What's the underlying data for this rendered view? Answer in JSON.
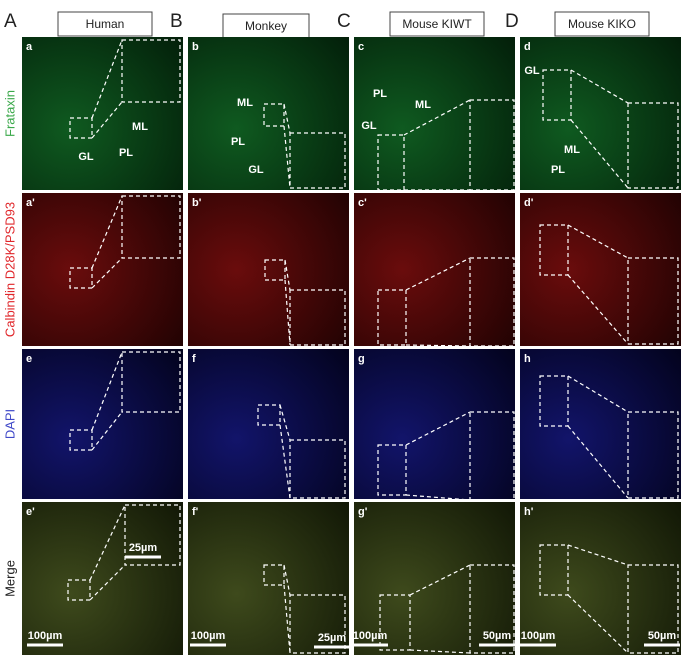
{
  "columns": [
    {
      "letter": "A",
      "title": "Human"
    },
    {
      "letter": "B",
      "title": "Monkey"
    },
    {
      "letter": "C",
      "title": "Mouse KIWT"
    },
    {
      "letter": "D",
      "title": "Mouse KIKO"
    }
  ],
  "rows": [
    {
      "label": "Frataxin",
      "color": "#3aa84a"
    },
    {
      "label": "Calbindin D28K/PSD93",
      "color": "#e0262a"
    },
    {
      "label": "DAPI",
      "color": "#3f48c8"
    },
    {
      "label": "Merge",
      "color": "#222222"
    }
  ],
  "panels": [
    [
      {
        "label": "a",
        "annotations": [
          "GL",
          "PL",
          "ML"
        ]
      },
      {
        "label": "b",
        "annotations": [
          "ML",
          "PL",
          "GL"
        ]
      },
      {
        "label": "c",
        "annotations": [
          "PL",
          "ML",
          "GL"
        ]
      },
      {
        "label": "d",
        "annotations": [
          "GL",
          "ML",
          "PL"
        ]
      }
    ],
    [
      {
        "label": "a'",
        "annotations": []
      },
      {
        "label": "b'",
        "annotations": []
      },
      {
        "label": "c'",
        "annotations": []
      },
      {
        "label": "d'",
        "annotations": []
      }
    ],
    [
      {
        "label": "e",
        "annotations": []
      },
      {
        "label": "f",
        "annotations": []
      },
      {
        "label": "g",
        "annotations": []
      },
      {
        "label": "h",
        "annotations": []
      }
    ],
    [
      {
        "label": "e'",
        "annotations": [
          "25µm",
          "100µm"
        ]
      },
      {
        "label": "f'",
        "annotations": [
          "100µm",
          "25µm"
        ]
      },
      {
        "label": "g'",
        "annotations": [
          "100µm",
          "50µm"
        ]
      },
      {
        "label": "h'",
        "annotations": [
          "100µm",
          "50µm"
        ]
      }
    ]
  ]
}
